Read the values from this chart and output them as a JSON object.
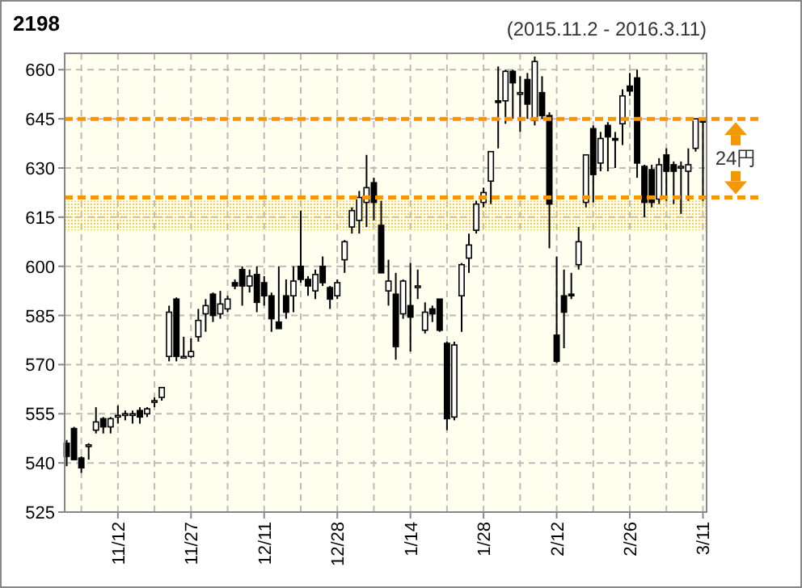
{
  "chart_data": {
    "type": "candlestick",
    "title": "2198",
    "subtitle": "(2015.11.2 - 2016.3.11)",
    "categories": [
      null,
      null,
      null,
      null,
      null,
      null,
      null,
      "11/12",
      null,
      null,
      null,
      null,
      null,
      null,
      null,
      null,
      null,
      "11/27",
      null,
      null,
      null,
      null,
      null,
      null,
      null,
      null,
      null,
      "12/11",
      null,
      null,
      null,
      null,
      null,
      null,
      null,
      null,
      null,
      "12/28",
      null,
      null,
      null,
      null,
      null,
      null,
      null,
      null,
      null,
      "1/14",
      null,
      null,
      null,
      null,
      null,
      null,
      null,
      null,
      null,
      "1/28",
      null,
      null,
      null,
      null,
      null,
      null,
      null,
      null,
      null,
      "2/12",
      null,
      null,
      null,
      null,
      null,
      null,
      null,
      null,
      null,
      "2/26",
      null,
      null,
      null,
      null,
      null,
      null,
      null,
      null,
      null,
      "3/11"
    ],
    "ohlc": [
      [
        546,
        547,
        539,
        542
      ],
      [
        550.5,
        551,
        541,
        541
      ],
      [
        541.5,
        542,
        537,
        538.5
      ],
      [
        545,
        546,
        541,
        545.5
      ],
      [
        550,
        557,
        549,
        552.5
      ],
      [
        553.5,
        554,
        549,
        551
      ],
      [
        551,
        554,
        549,
        553.5
      ],
      [
        554,
        557.5,
        552,
        554.5
      ],
      [
        554.5,
        556,
        553,
        555
      ],
      [
        554.5,
        556,
        552,
        555
      ],
      [
        556,
        557,
        552,
        554
      ],
      [
        555,
        557,
        554,
        556.5
      ],
      [
        558.5,
        560,
        557,
        559
      ],
      [
        560,
        563,
        559,
        563
      ],
      [
        572.5,
        588,
        571,
        586
      ],
      [
        590,
        590.5,
        571,
        572.5
      ],
      [
        572.5,
        578.5,
        572,
        572.5
      ],
      [
        572.5,
        578,
        572,
        574
      ],
      [
        578.5,
        587,
        577,
        583.5
      ],
      [
        585.5,
        590,
        580,
        588
      ],
      [
        591.5,
        592,
        583,
        585
      ],
      [
        585.5,
        592.5,
        584,
        588.5
      ],
      [
        587,
        591,
        586,
        590
      ],
      [
        595,
        596,
        593,
        594
      ],
      [
        599,
        600,
        588,
        594
      ],
      [
        594,
        599,
        592,
        597
      ],
      [
        597.5,
        600,
        586,
        589
      ],
      [
        595,
        597,
        588,
        591
      ],
      [
        591,
        592,
        580,
        584
      ],
      [
        583,
        600,
        581,
        581
      ],
      [
        591,
        596,
        584,
        586
      ],
      [
        591,
        600,
        586,
        595.5
      ],
      [
        600,
        617,
        595,
        596
      ],
      [
        596,
        597,
        591,
        594
      ],
      [
        592.5,
        599,
        590,
        597.5
      ],
      [
        600,
        603,
        594,
        595
      ],
      [
        593.5,
        594,
        587,
        590
      ],
      [
        591,
        596,
        590,
        595
      ],
      [
        602,
        608,
        598,
        607.5
      ],
      [
        612,
        618,
        610,
        617
      ],
      [
        614,
        623,
        610,
        621
      ],
      [
        619.5,
        634,
        612,
        624
      ],
      [
        625.5,
        627,
        614,
        619.5
      ],
      [
        612.5,
        620,
        598,
        598
      ],
      [
        592.5,
        602,
        588,
        595.5
      ],
      [
        591.5,
        598,
        571.5,
        575.5
      ],
      [
        585.5,
        596,
        584,
        595.5
      ],
      [
        588,
        601,
        574,
        584.5
      ],
      [
        594,
        599,
        590,
        594
      ],
      [
        580.5,
        589,
        579.5,
        586
      ],
      [
        587,
        588,
        583,
        585.5
      ],
      [
        590,
        590,
        580,
        580.5
      ],
      [
        576.5,
        577,
        550,
        553.5
      ],
      [
        554,
        577,
        553,
        576
      ],
      [
        591,
        601,
        580,
        600.5
      ],
      [
        602.5,
        610,
        598,
        606.5
      ],
      [
        611,
        620,
        610,
        619
      ],
      [
        619.5,
        624,
        618,
        622.5
      ],
      [
        626,
        635,
        619,
        635
      ],
      [
        650.5,
        661,
        636,
        650
      ],
      [
        650.5,
        660,
        643.5,
        659.5
      ],
      [
        659.5,
        660,
        645,
        656
      ],
      [
        652.5,
        658,
        641,
        653
      ],
      [
        657,
        659,
        645,
        649.5
      ],
      [
        644.5,
        664,
        643,
        662.5
      ],
      [
        653,
        658,
        645,
        646
      ],
      [
        646,
        647,
        605.5,
        619
      ],
      [
        579,
        603,
        570.5,
        571
      ],
      [
        591,
        599,
        575,
        586
      ],
      [
        591.5,
        598,
        590,
        591
      ],
      [
        600.5,
        612,
        599,
        607.5
      ],
      [
        619.5,
        634,
        618,
        634
      ],
      [
        642,
        643,
        619.5,
        628
      ],
      [
        631.5,
        641,
        629,
        639
      ],
      [
        643,
        644,
        629,
        639.5
      ],
      [
        639,
        641,
        630,
        638.5
      ],
      [
        643.5,
        654,
        637,
        652
      ],
      [
        655,
        659,
        652,
        653.5
      ],
      [
        657.5,
        660,
        627,
        631.5
      ],
      [
        630.5,
        631,
        615,
        619.5
      ],
      [
        629.5,
        631,
        618,
        619.5
      ],
      [
        620.5,
        633,
        619,
        631
      ],
      [
        634,
        636,
        620,
        629
      ],
      [
        631,
        632,
        619,
        629
      ],
      [
        630,
        632,
        616,
        630.5
      ],
      [
        629,
        636,
        620,
        631
      ],
      [
        636,
        645,
        635,
        645
      ],
      [
        644.5,
        645,
        620,
        644
      ]
    ],
    "ylim": [
      525,
      665
    ],
    "yticks": [
      525,
      540,
      555,
      570,
      585,
      600,
      615,
      630,
      645,
      660
    ],
    "grid": true,
    "bands": [
      {
        "axis": "y",
        "from": 611,
        "to": 620,
        "color": "#f2c84b"
      }
    ],
    "ref_lines": [
      {
        "axis": "y",
        "value": 645,
        "color": "#f39800",
        "line_style": "dashed"
      },
      {
        "axis": "y",
        "value": 621,
        "color": "#f39800",
        "line_style": "dashed"
      }
    ],
    "annotations": [
      "24円"
    ]
  }
}
